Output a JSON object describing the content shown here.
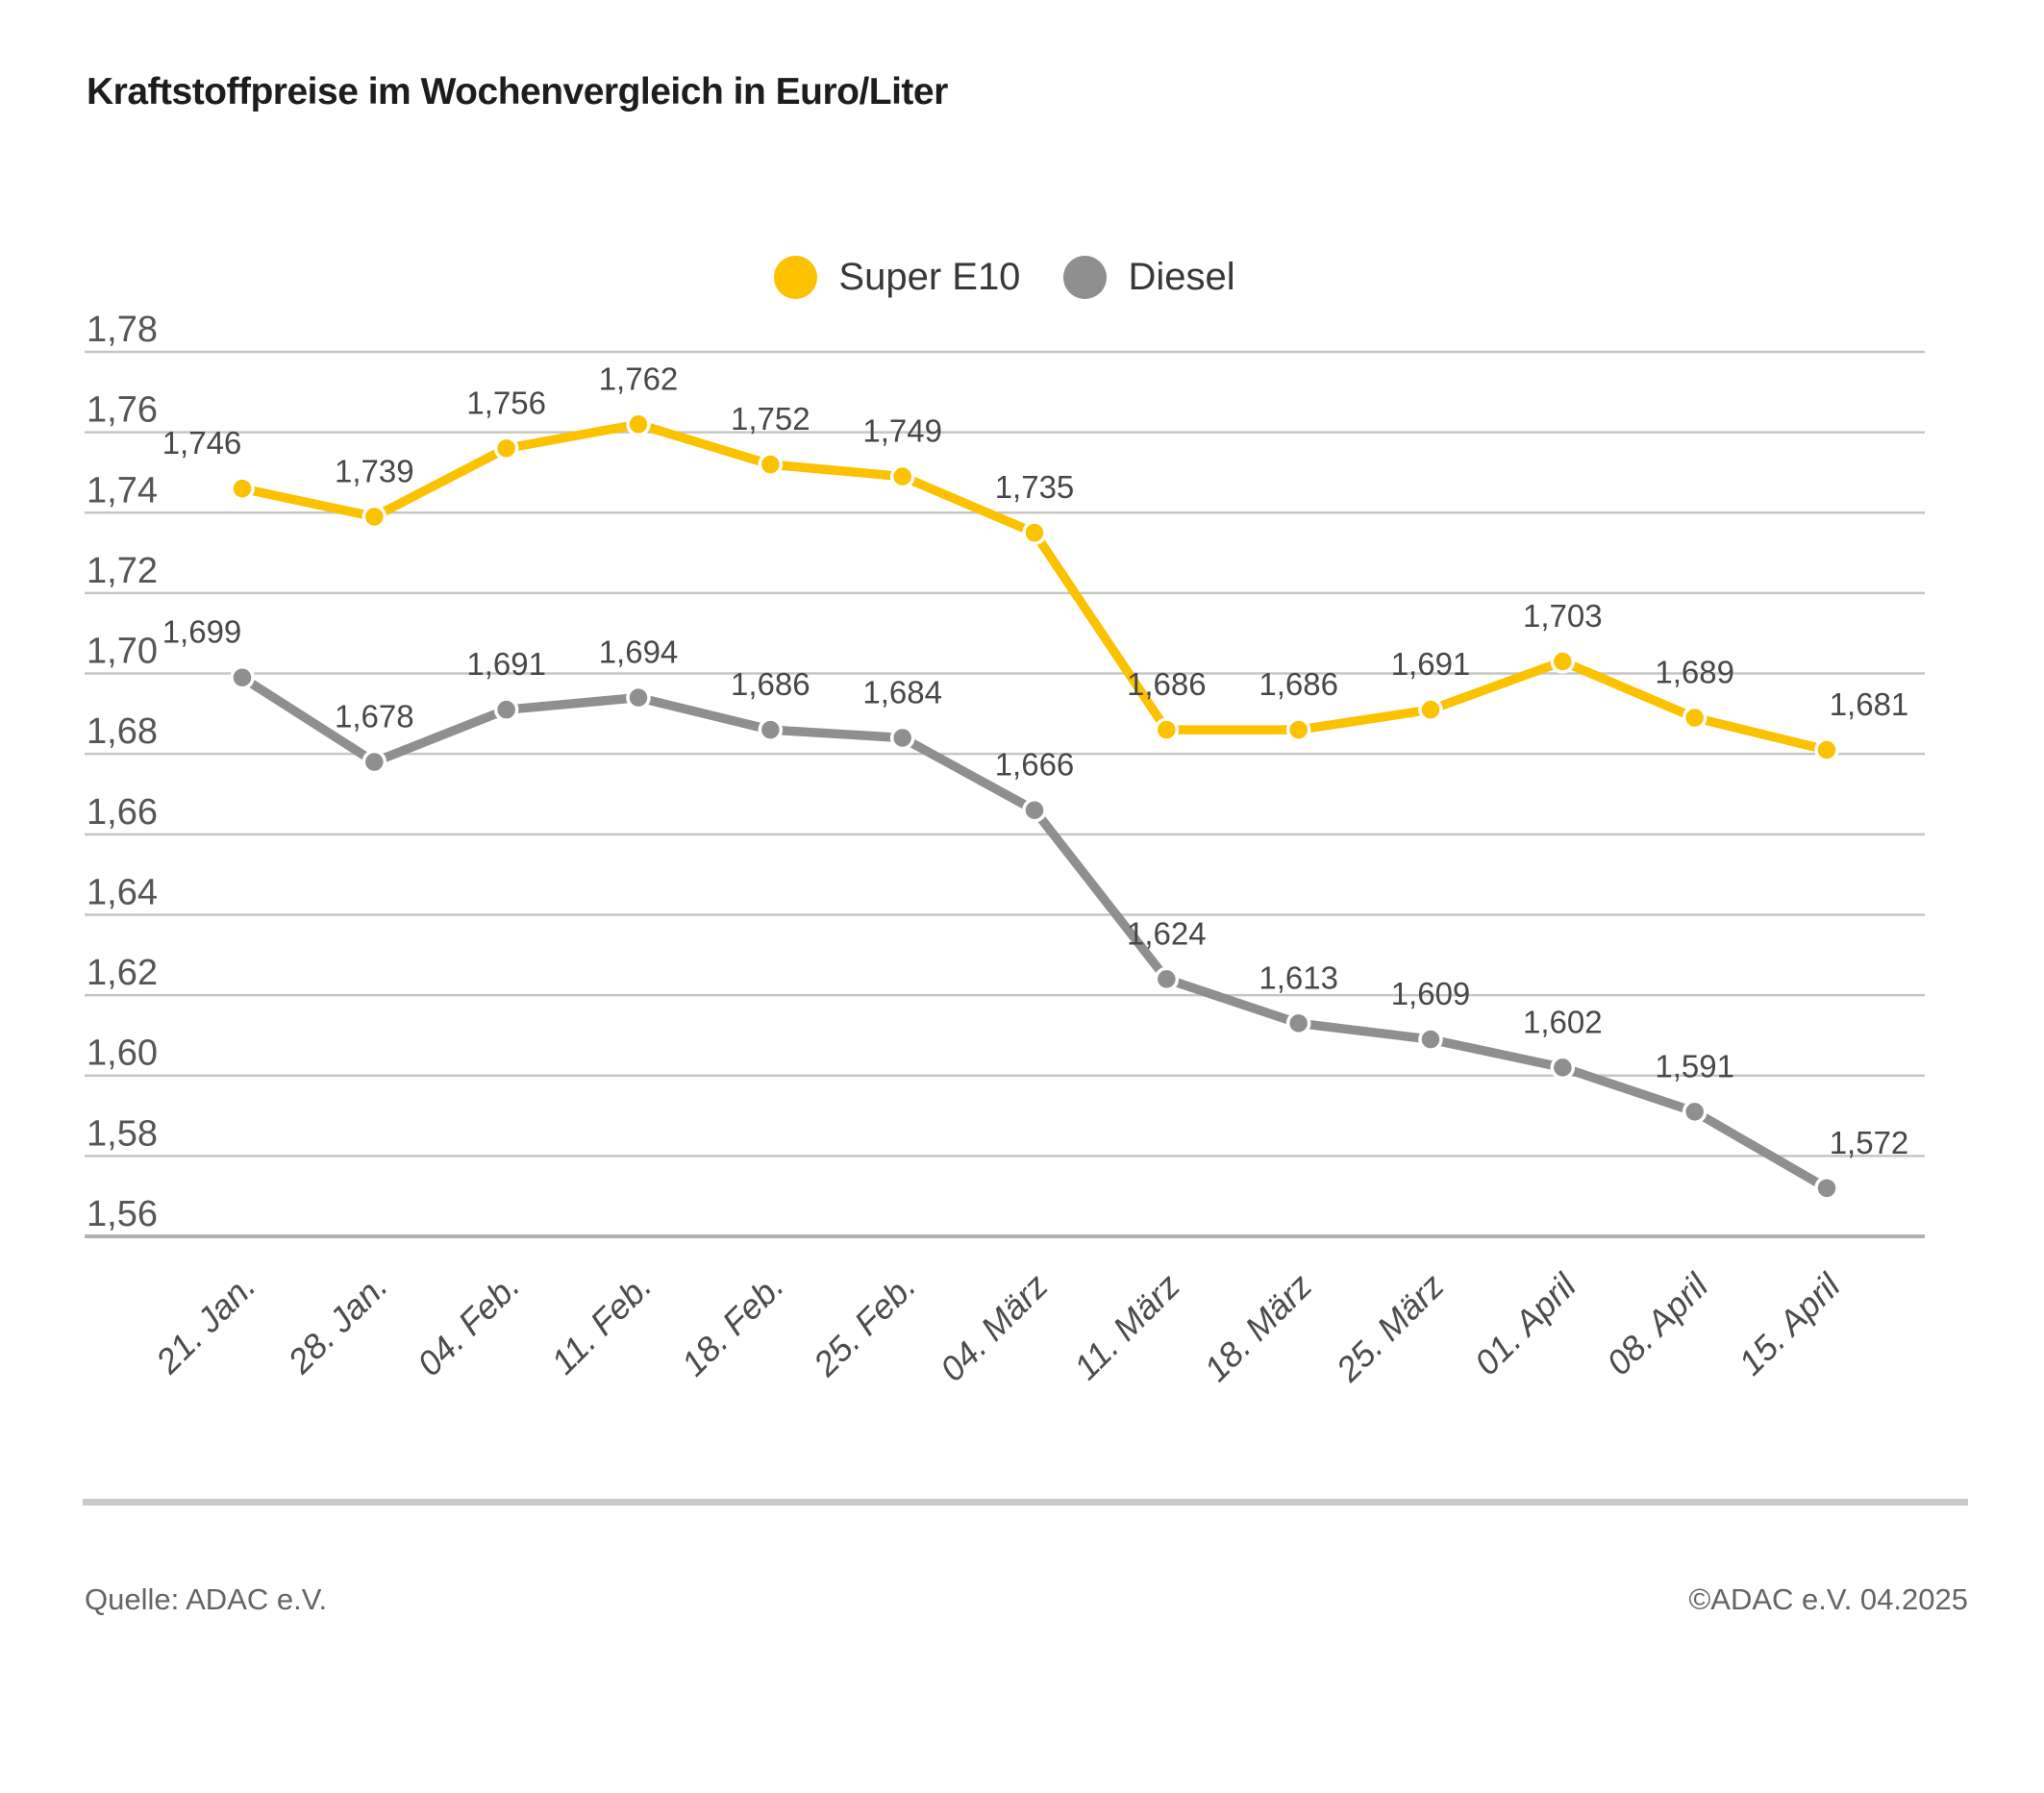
{
  "title": "Kraftstoffpreise im Wochenvergleich in Euro/Liter",
  "chart_data": {
    "type": "line",
    "title": "Kraftstoffpreise im Wochenvergleich in Euro/Liter",
    "x": [
      "21. Jan.",
      "28. Jan.",
      "04. Feb.",
      "11. Feb.",
      "18. Feb.",
      "25. Feb.",
      "04. März",
      "11. März",
      "18. März",
      "25. März",
      "01. April",
      "08. April",
      "15. April"
    ],
    "series": [
      {
        "name": "Super E10",
        "color": "#FCC200",
        "values": [
          1.746,
          1.739,
          1.756,
          1.762,
          1.752,
          1.749,
          1.735,
          1.686,
          1.686,
          1.691,
          1.703,
          1.689,
          1.681
        ],
        "labels": [
          "1,746",
          "1,739",
          "1,756",
          "1,762",
          "1,752",
          "1,749",
          "1,735",
          "1,686",
          "1,686",
          "1,691",
          "1,703",
          "1,689",
          "1,681"
        ]
      },
      {
        "name": "Diesel",
        "color": "#8F8F8F",
        "values": [
          1.699,
          1.678,
          1.691,
          1.694,
          1.686,
          1.684,
          1.666,
          1.624,
          1.613,
          1.609,
          1.602,
          1.591,
          1.572
        ],
        "labels": [
          "1,699",
          "1,678",
          "1,691",
          "1,694",
          "1,686",
          "1,684",
          "1,666",
          "1,624",
          "1,613",
          "1,609",
          "1,602",
          "1,591",
          "1,572"
        ]
      }
    ],
    "xlabel": "",
    "ylabel": "",
    "ylim": [
      1.56,
      1.78
    ],
    "ytick_step": 0.02,
    "ytick_labels": [
      "1,78",
      "1,76",
      "1,74",
      "1,72",
      "1,70",
      "1,68",
      "1,66",
      "1,64",
      "1,62",
      "1,60",
      "1,58",
      "1,56"
    ],
    "grid": true,
    "legend_position": "top"
  },
  "footer": {
    "source": "Quelle: ADAC e.V.",
    "copyright": "©ADAC e.V. 04.2025"
  }
}
